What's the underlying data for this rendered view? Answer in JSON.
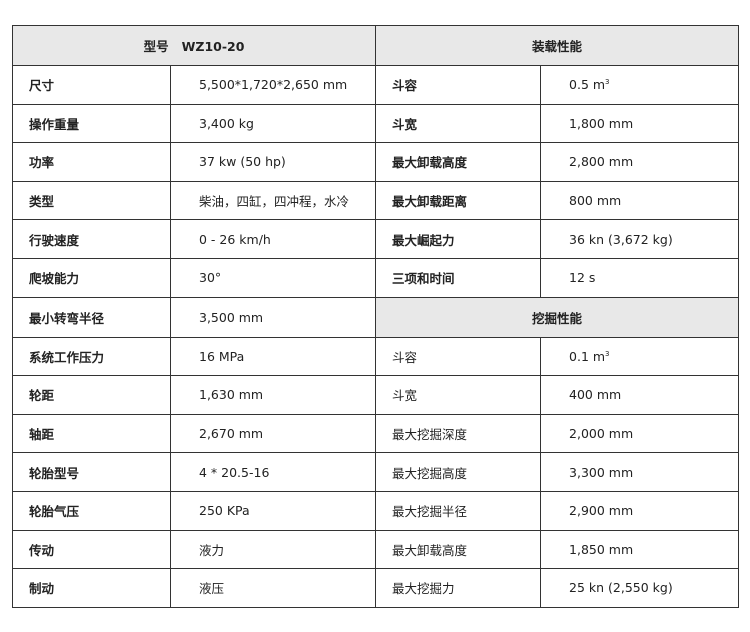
{
  "header": {
    "left": "型号   WZ10-20",
    "right": "装载性能",
    "digging": "挖掘性能"
  },
  "left_rows": [
    {
      "label": "尺寸",
      "value": "5,500*1,720*2,650 mm"
    },
    {
      "label": "操作重量",
      "value": "3,400 kg"
    },
    {
      "label": "功率",
      "value": "37 kw (50 hp)"
    },
    {
      "label": "类型",
      "value": "柴油，四缸，四冲程，水冷"
    },
    {
      "label": "行驶速度",
      "value": "0 - 26 km/h"
    },
    {
      "label": "爬坡能力",
      "value": "30°"
    },
    {
      "label": "最小转弯半径",
      "value": "3,500 mm"
    },
    {
      "label": "系统工作压力",
      "value": "16 MPa"
    },
    {
      "label": "轮距",
      "value": "1,630 mm"
    },
    {
      "label": "轴距",
      "value": "2,670 mm"
    },
    {
      "label": "轮胎型号",
      "value": "4 * 20.5-16"
    },
    {
      "label": "轮胎气压",
      "value": "250 KPa"
    },
    {
      "label": "传动",
      "value": "液力"
    },
    {
      "label": "制动",
      "value": "液压"
    }
  ],
  "loading_rows": [
    {
      "label": "斗容",
      "value": "0.5 m",
      "sup": "3"
    },
    {
      "label": "斗宽",
      "value": "1,800 mm"
    },
    {
      "label": "最大卸载高度",
      "value": "2,800 mm"
    },
    {
      "label": "最大卸载距离",
      "value": "800 mm"
    },
    {
      "label": "最大崛起力",
      "value": "36 kn (3,672 kg)"
    },
    {
      "label": "三项和时间",
      "value": "12 s"
    }
  ],
  "digging_rows": [
    {
      "label": "斗容",
      "value": "0.1 m",
      "sup": "3"
    },
    {
      "label": "斗宽",
      "value": "400 mm"
    },
    {
      "label": "最大挖掘深度",
      "value": "2,000 mm"
    },
    {
      "label": "最大挖掘高度",
      "value": "3,300 mm"
    },
    {
      "label": "最大挖掘半径",
      "value": "2,900 mm"
    },
    {
      "label": "最大卸载高度",
      "value": "1,850 mm"
    },
    {
      "label": "最大挖掘力",
      "value": "25 kn (2,550 kg)"
    }
  ]
}
